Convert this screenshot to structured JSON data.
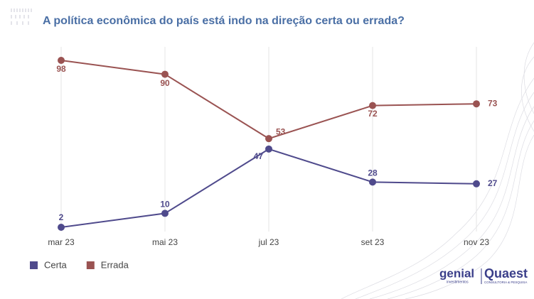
{
  "chart_data": {
    "type": "line",
    "title": "A política econômica do país está indo na direção certa ou errada?",
    "categories": [
      "mar 23",
      "mai 23",
      "jul 23",
      "set 23",
      "nov 23"
    ],
    "series": [
      {
        "name": "Certa",
        "color": "#4f4a8c",
        "values": [
          2,
          10,
          47,
          28,
          27
        ]
      },
      {
        "name": "Errada",
        "color": "#9a5352",
        "values": [
          98,
          90,
          53,
          72,
          73
        ]
      }
    ],
    "grid": true,
    "legend": "bottom-left"
  },
  "footer": {
    "logo_left": "genial",
    "logo_left_sub": "investimentos",
    "logo_right": "Quaest",
    "logo_right_sub": "CONSULTORIA & PESQUISA"
  }
}
